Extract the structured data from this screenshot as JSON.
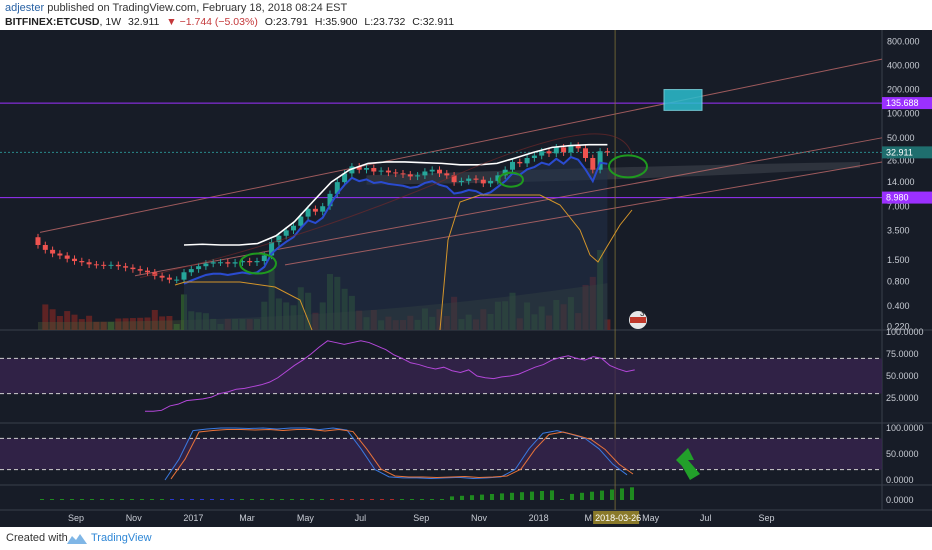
{
  "header": {
    "author": "adjester",
    "published_text": "published on TradingView.com, February 18, 2018 08:24 EST",
    "symbol": "BITFINEX:ETCUSD",
    "interval": "1W",
    "last": "32.911",
    "change": "▼ −1.744 (−5.03%)",
    "open": "O:23.791",
    "high": "H:35.900",
    "low": "L:23.732",
    "close": "C:32.911"
  },
  "footer": {
    "created_with": "Created with",
    "brand": "TradingView"
  },
  "colors": {
    "background": "#171c27",
    "up": "#26a69a",
    "down": "#ef5350",
    "purple": "#9b30ff",
    "channel": "#c06a6a",
    "sma": "#ffffff",
    "band": "#d4952a",
    "rsi": "#b347d9",
    "stoch_k": "#3a79e0",
    "stoch_d": "#e8733a",
    "highlight_box": "#2bbfd0",
    "arrow": "#22a02a",
    "annotation_circle": "#1f9a1f"
  },
  "chart_data": {
    "type": "candlestick",
    "symbol": "BITFINEX:ETCUSD",
    "interval": "1W",
    "y_scale": "log",
    "y_ticks": [
      "800.000",
      "400.000",
      "200.000",
      "100.000",
      "50.000",
      "26.000",
      "14.000",
      "7.000",
      "3.500",
      "1.500",
      "0.800",
      "0.400",
      "0.220"
    ],
    "x_ticks": [
      "Sep",
      "Nov",
      "2017",
      "Mar",
      "May",
      "Jul",
      "Sep",
      "Nov",
      "2018",
      "M",
      "May",
      "Jul",
      "Sep"
    ],
    "x_ticks_dates": [
      "2016-09-01",
      "2016-11-01",
      "2017-01-01",
      "2017-03-01",
      "2017-05-01",
      "2017-07-01",
      "2017-09-01",
      "2017-11-01",
      "2018-01-01",
      "2018-03-01",
      "2018-05-01",
      "2018-07-01",
      "2018-09-01"
    ],
    "price_labels": {
      "current": "32.911",
      "upper_level": "135.688",
      "lower_level": "8.980"
    },
    "horizontal_levels": [
      135.688,
      8.98,
      32.911
    ],
    "crosshair_date_label": "2018-03-26",
    "candles_close": [
      2.3,
      2.0,
      1.8,
      1.7,
      1.55,
      1.45,
      1.4,
      1.32,
      1.3,
      1.28,
      1.3,
      1.25,
      1.2,
      1.15,
      1.1,
      1.05,
      0.95,
      0.9,
      0.85,
      0.85,
      1.05,
      1.15,
      1.25,
      1.35,
      1.4,
      1.4,
      1.35,
      1.4,
      1.45,
      1.4,
      1.45,
      1.7,
      2.5,
      3.0,
      3.5,
      4.0,
      5.2,
      6.5,
      6.0,
      7.0,
      10.0,
      14.0,
      18.0,
      22.0,
      20.0,
      21.0,
      19.0,
      19.5,
      18.5,
      18.0,
      17.5,
      16.5,
      17.0,
      19.0,
      20.0,
      18.0,
      17.0,
      14.0,
      14.5,
      15.5,
      15.0,
      13.5,
      14.5,
      17.0,
      20.0,
      25.0,
      24.0,
      28.0,
      30.0,
      34.0,
      32.0,
      38.0,
      33.0,
      40.0,
      37.0,
      28.0,
      20.0,
      34.0,
      32.911
    ],
    "sma_white": [
      2.3,
      2.35,
      2.3,
      2.3,
      2.4,
      3.0,
      4.5,
      8.0,
      14.0,
      20.0,
      24.0,
      25.0,
      25.0,
      24.5,
      24.0,
      23.0,
      23.0,
      24.0,
      28.0,
      33.0,
      38.0,
      40.0,
      41.0,
      41.0
    ],
    "overlays": [
      "ascending channel",
      "ichimoku cloud",
      "volume"
    ],
    "rsi": {
      "ticks": [
        "100.0000",
        "75.0000",
        "50.0000",
        "25.0000"
      ],
      "levels": [
        70,
        30
      ],
      "last": 57
    },
    "stoch_rsi": {
      "ticks": [
        "100.0000",
        "50.0000",
        "0.0000"
      ],
      "levels": [
        80,
        20
      ]
    },
    "histogram": {
      "ticks": [
        "0.0000"
      ]
    },
    "annotations": [
      "green circles at support retests",
      "green arrow up in stoch panel",
      "cyan target box near 135.688"
    ],
    "event_badge": "3"
  }
}
